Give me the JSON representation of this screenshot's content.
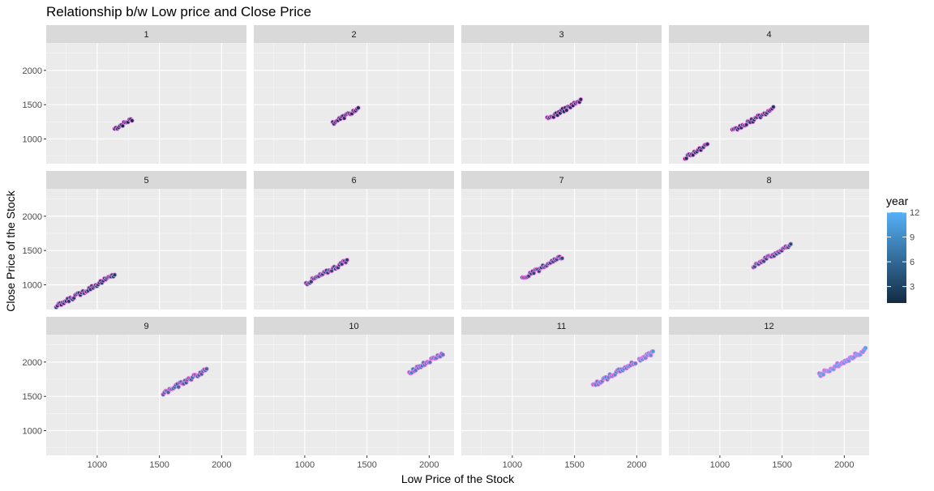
{
  "chart_data": {
    "type": "scatter",
    "title": "Relationship b/w Low price and Close Price",
    "xlabel": "Low Price of the  Stock",
    "ylabel": "Close Price of the Stock",
    "facet_by": "month",
    "layout": {
      "rows": 3,
      "cols": 4
    },
    "xlim": [
      590,
      2200
    ],
    "ylim": [
      640,
      2400
    ],
    "x_ticks": [
      1000,
      1500,
      2000
    ],
    "y_ticks": [
      1000,
      1500,
      2000
    ],
    "grid": true,
    "legend": {
      "title": "year",
      "placement": "right",
      "ticks": [
        3,
        6,
        9,
        12
      ],
      "range": [
        1,
        12
      ],
      "colors": {
        "low": "#132B43",
        "high": "#56B1F7"
      }
    },
    "point_outline_color": "#ee82ee",
    "panels": [
      {
        "label": "1",
        "segments": [
          {
            "x0": 1140,
            "x1": 1280,
            "year": 1
          }
        ]
      },
      {
        "label": "2",
        "segments": [
          {
            "x0": 1225,
            "x1": 1430,
            "year": 1.5
          }
        ]
      },
      {
        "label": "3",
        "segments": [
          {
            "x0": 1280,
            "x1": 1550,
            "year": 1.5
          }
        ]
      },
      {
        "label": "4",
        "segments": [
          {
            "x0": 720,
            "x1": 900,
            "year": 1.5
          },
          {
            "x0": 1100,
            "x1": 1430,
            "year": 2
          }
        ]
      },
      {
        "label": "5",
        "segments": [
          {
            "x0": 670,
            "x1": 1140,
            "year": 2.5
          }
        ]
      },
      {
        "label": "6",
        "segments": [
          {
            "x0": 1010,
            "x1": 1340,
            "year": 3
          }
        ]
      },
      {
        "label": "7",
        "segments": [
          {
            "x0": 1080,
            "x1": 1400,
            "year": 3.5
          }
        ]
      },
      {
        "label": "8",
        "segments": [
          {
            "x0": 1270,
            "x1": 1570,
            "year": 4
          }
        ]
      },
      {
        "label": "9",
        "segments": [
          {
            "x0": 1530,
            "x1": 1880,
            "year": 6
          }
        ]
      },
      {
        "label": "10",
        "segments": [
          {
            "x0": 1840,
            "x1": 2110,
            "year": 8
          }
        ]
      },
      {
        "label": "11",
        "segments": [
          {
            "x0": 1650,
            "x1": 1990,
            "year": 9
          },
          {
            "x0": 2020,
            "x1": 2130,
            "year": 10
          }
        ]
      },
      {
        "label": "12",
        "segments": [
          {
            "x0": 1800,
            "x1": 2170,
            "year": 11
          }
        ]
      }
    ]
  }
}
